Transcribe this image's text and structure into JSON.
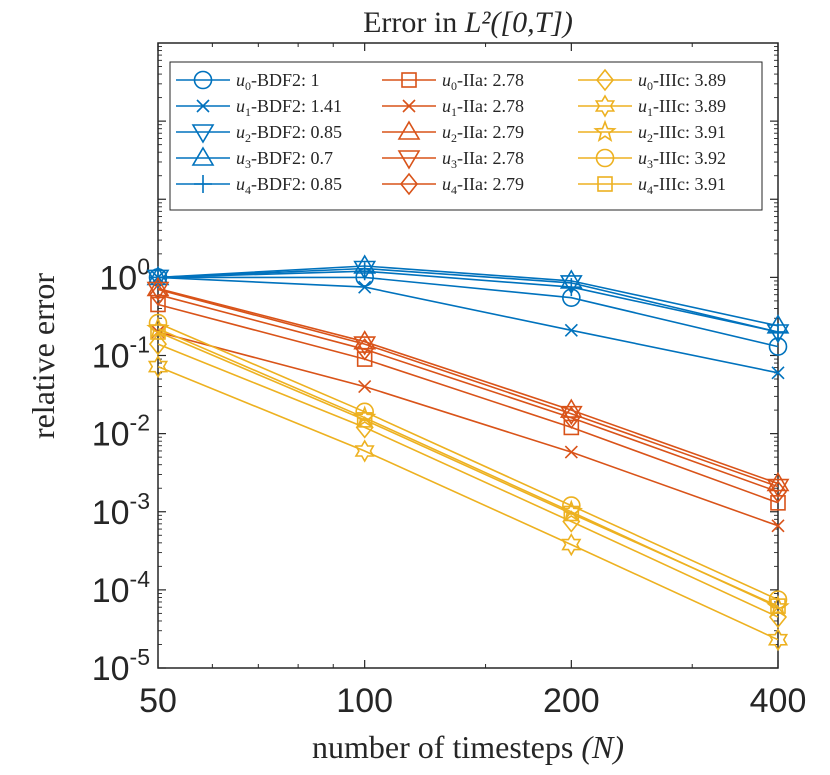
{
  "chart_data": {
    "type": "line",
    "title_prefix": "Error in ",
    "title_math": "L²([0,T])",
    "xlabel_prefix": "number of timesteps ",
    "xlabel_math": "(N)",
    "ylabel": "relative error",
    "x_scale": "log",
    "y_scale": "log",
    "x": [
      50,
      100,
      200,
      400
    ],
    "xlim": [
      50,
      400
    ],
    "ylim": [
      1e-05,
      1000
    ],
    "x_ticks": [
      50,
      100,
      200,
      400
    ],
    "x_tick_labels": [
      "50",
      "100",
      "200",
      "400"
    ],
    "y_ticks": [
      1e-05,
      0.0001,
      0.001,
      0.01,
      0.1,
      1
    ],
    "y_tick_labels": [
      {
        "base": "10",
        "exp": "-5"
      },
      {
        "base": "10",
        "exp": "-4"
      },
      {
        "base": "10",
        "exp": "-3"
      },
      {
        "base": "10",
        "exp": "-2"
      },
      {
        "base": "10",
        "exp": "-1"
      },
      {
        "base": "10",
        "exp": "0"
      }
    ],
    "legend_position": "top-inside",
    "colors": {
      "BDF2": "#0072BD",
      "IIa": "#D95319",
      "IIIc": "#EDB120"
    },
    "series": [
      {
        "var": "u",
        "sub": "0",
        "method": "BDF2",
        "rate": "1",
        "marker": "circle",
        "color": "#0072BD",
        "values": [
          1.0,
          1.0,
          0.55,
          0.13
        ]
      },
      {
        "var": "u",
        "sub": "1",
        "method": "BDF2",
        "rate": "1.41",
        "marker": "x",
        "color": "#0072BD",
        "values": [
          1.0,
          0.75,
          0.21,
          0.06
        ]
      },
      {
        "var": "u",
        "sub": "2",
        "method": "BDF2",
        "rate": "0.85",
        "marker": "triangle-down",
        "color": "#0072BD",
        "values": [
          1.0,
          1.3,
          0.85,
          0.2
        ]
      },
      {
        "var": "u",
        "sub": "3",
        "method": "BDF2",
        "rate": "0.7",
        "marker": "triangle-up",
        "color": "#0072BD",
        "values": [
          1.0,
          1.4,
          0.9,
          0.24
        ]
      },
      {
        "var": "u",
        "sub": "4",
        "method": "BDF2",
        "rate": "0.85",
        "marker": "plus",
        "color": "#0072BD",
        "values": [
          1.0,
          1.2,
          0.75,
          0.2
        ]
      },
      {
        "var": "u",
        "sub": "0",
        "method": "IIa",
        "rate": "2.78",
        "marker": "square",
        "color": "#D95319",
        "values": [
          0.45,
          0.09,
          0.012,
          0.0013
        ]
      },
      {
        "var": "u",
        "sub": "1",
        "method": "IIa",
        "rate": "2.78",
        "marker": "x",
        "color": "#D95319",
        "values": [
          0.2,
          0.04,
          0.0058,
          0.00066
        ]
      },
      {
        "var": "u",
        "sub": "2",
        "method": "IIa",
        "rate": "2.79",
        "marker": "triangle-up",
        "color": "#D95319",
        "values": [
          0.72,
          0.15,
          0.02,
          0.0023
        ]
      },
      {
        "var": "u",
        "sub": "3",
        "method": "IIa",
        "rate": "2.78",
        "marker": "triangle-down",
        "color": "#D95319",
        "values": [
          0.7,
          0.14,
          0.018,
          0.0021
        ]
      },
      {
        "var": "u",
        "sub": "4",
        "method": "IIa",
        "rate": "2.79",
        "marker": "diamond",
        "color": "#D95319",
        "values": [
          0.6,
          0.12,
          0.016,
          0.0018
        ]
      },
      {
        "var": "u",
        "sub": "0",
        "method": "IIIc",
        "rate": "3.89",
        "marker": "diamond",
        "color": "#EDB120",
        "values": [
          0.14,
          0.012,
          0.00075,
          4.5e-05
        ]
      },
      {
        "var": "u",
        "sub": "1",
        "method": "IIIc",
        "rate": "3.89",
        "marker": "hexagram",
        "color": "#EDB120",
        "values": [
          0.072,
          0.006,
          0.00038,
          2.3e-05
        ]
      },
      {
        "var": "u",
        "sub": "2",
        "method": "IIIc",
        "rate": "3.91",
        "marker": "pentagram",
        "color": "#EDB120",
        "values": [
          0.22,
          0.016,
          0.001,
          6e-05
        ]
      },
      {
        "var": "u",
        "sub": "3",
        "method": "IIIc",
        "rate": "3.92",
        "marker": "circle",
        "color": "#EDB120",
        "values": [
          0.26,
          0.019,
          0.0012,
          7.5e-05
        ]
      },
      {
        "var": "u",
        "sub": "4",
        "method": "IIIc",
        "rate": "3.91",
        "marker": "square",
        "color": "#EDB120",
        "values": [
          0.2,
          0.015,
          0.00095,
          6.2e-05
        ]
      }
    ]
  }
}
